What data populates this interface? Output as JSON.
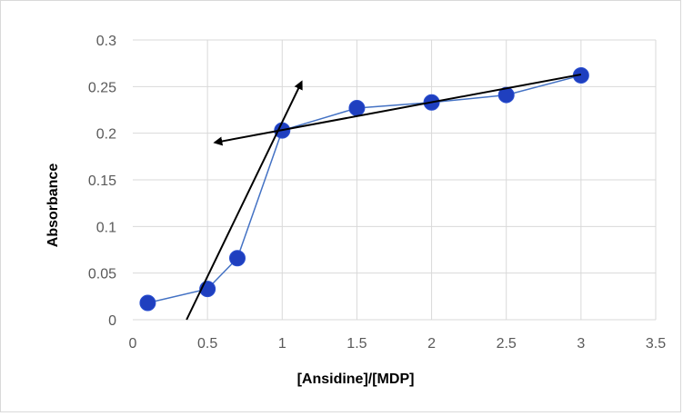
{
  "chart_data": {
    "type": "scatter",
    "title": "",
    "xlabel": "[Ansidine]/[MDP]",
    "ylabel": "Absorbance",
    "xlim": [
      0,
      3.5
    ],
    "ylim": [
      0,
      0.3
    ],
    "x_ticks": [
      0,
      0.5,
      1,
      1.5,
      2,
      2.5,
      3,
      3.5
    ],
    "x_tick_labels": [
      "0",
      "0.5",
      "1",
      "1.5",
      "2",
      "2.5",
      "3",
      "3.5"
    ],
    "y_ticks": [
      0,
      0.05,
      0.1,
      0.15,
      0.2,
      0.25,
      0.3
    ],
    "y_tick_labels": [
      "0",
      "0.05",
      "0.1",
      "0.15",
      "0.2",
      "0.25",
      "0.3"
    ],
    "grid": true,
    "legend": "none",
    "series": [
      {
        "x": [
          0.1,
          0.5,
          0.7,
          1.0,
          1.5,
          2.0,
          2.5,
          3.0
        ],
        "y": [
          0.018,
          0.033,
          0.066,
          0.203,
          0.227,
          0.233,
          0.241,
          0.262
        ],
        "color": "#1f3fbf",
        "line_color": "#4472c4",
        "marker": "circle"
      }
    ],
    "annotations": [
      {
        "kind": "arrow-line",
        "from": [
          0.36,
          0
        ],
        "to": [
          1.13,
          0.255
        ],
        "color": "#000000"
      },
      {
        "kind": "arrow-line",
        "from": [
          3.0,
          0.263
        ],
        "to": [
          0.55,
          0.19
        ],
        "color": "#000000"
      }
    ]
  }
}
